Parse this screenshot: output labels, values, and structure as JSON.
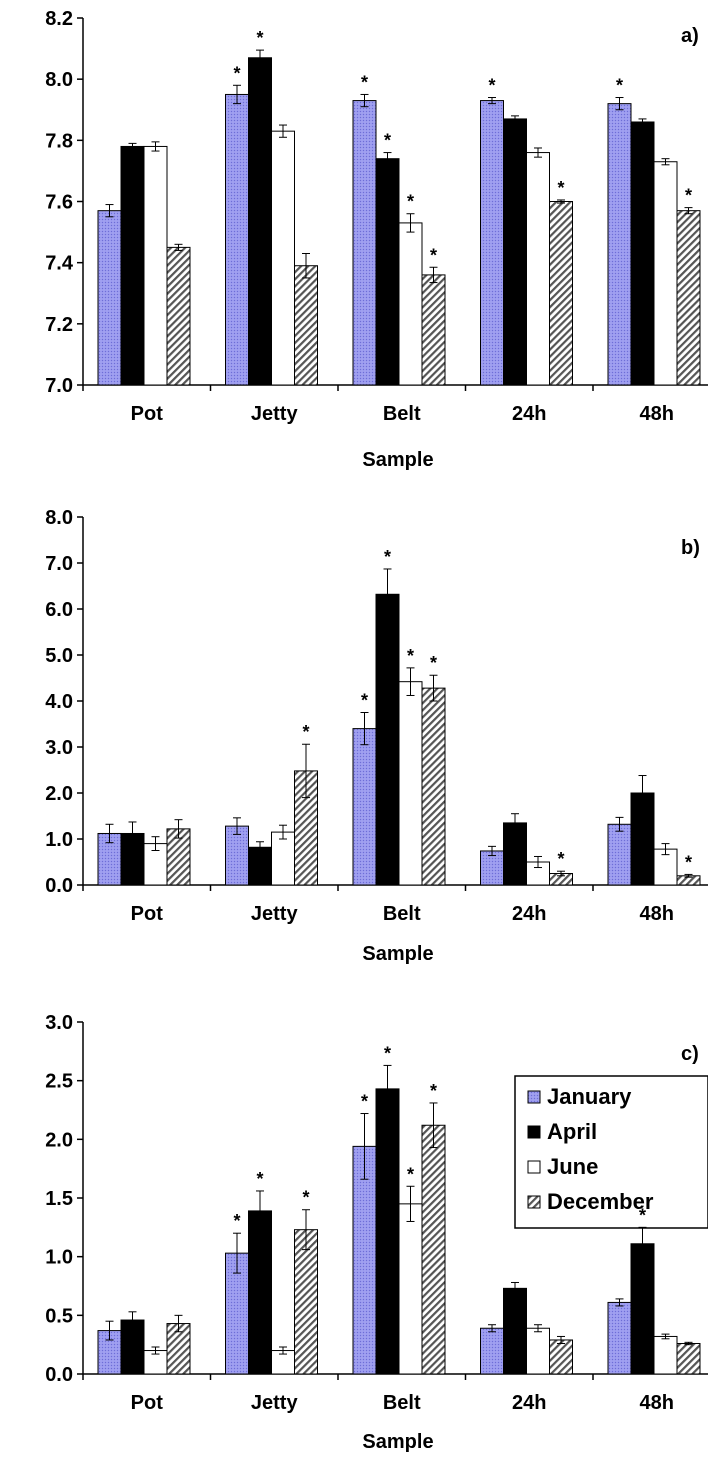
{
  "figure": {
    "legend": {
      "entries": [
        "January",
        "April",
        "June",
        "December"
      ]
    }
  },
  "series_styles": [
    {
      "name": "January",
      "fill": "#9999ee",
      "pattern": "dots"
    },
    {
      "name": "April",
      "fill": "#000000",
      "pattern": "solid"
    },
    {
      "name": "June",
      "fill": "#ffffff",
      "pattern": "solid"
    },
    {
      "name": "December",
      "fill": "#ffffff",
      "pattern": "diagonal-hatch"
    }
  ],
  "chart_data": [
    {
      "type": "bar",
      "panel_label": "a)",
      "title": "",
      "xlabel": "Sample",
      "ylabel": "",
      "categories": [
        "Pot",
        "Jetty",
        "Belt",
        "24h",
        "48h"
      ],
      "ylim": [
        7.0,
        8.2
      ],
      "yticks": [
        7.0,
        7.2,
        7.4,
        7.6,
        7.8,
        8.0,
        8.2
      ],
      "ytick_labels": [
        "7.0",
        "7.2",
        "7.4",
        "7.6",
        "7.8",
        "8.0",
        "8.2"
      ],
      "grid": false,
      "show_legend": false,
      "series": [
        {
          "name": "January",
          "values": [
            7.57,
            7.95,
            7.93,
            7.93,
            7.92
          ],
          "errors": [
            0.02,
            0.03,
            0.02,
            0.01,
            0.02
          ],
          "significant": [
            false,
            true,
            true,
            true,
            true
          ]
        },
        {
          "name": "April",
          "values": [
            7.78,
            8.07,
            7.74,
            7.87,
            7.86
          ],
          "errors": [
            0.01,
            0.025,
            0.02,
            0.01,
            0.01
          ],
          "significant": [
            false,
            true,
            true,
            false,
            false
          ]
        },
        {
          "name": "June",
          "values": [
            7.78,
            7.83,
            7.53,
            7.76,
            7.73
          ],
          "errors": [
            0.015,
            0.02,
            0.03,
            0.015,
            0.01
          ],
          "significant": [
            false,
            false,
            true,
            false,
            false
          ]
        },
        {
          "name": "December",
          "values": [
            7.45,
            7.39,
            7.36,
            7.6,
            7.57
          ],
          "errors": [
            0.01,
            0.04,
            0.025,
            0.005,
            0.01
          ],
          "significant": [
            false,
            false,
            true,
            true,
            true
          ]
        }
      ]
    },
    {
      "type": "bar",
      "panel_label": "b)",
      "title": "",
      "xlabel": "Sample",
      "ylabel": "",
      "categories": [
        "Pot",
        "Jetty",
        "Belt",
        "24h",
        "48h"
      ],
      "ylim": [
        0.0,
        8.0
      ],
      "yticks": [
        0,
        1,
        2,
        3,
        4,
        5,
        6,
        7,
        8
      ],
      "ytick_labels": [
        "0.0",
        "1.0",
        "2.0",
        "3.0",
        "4.0",
        "5.0",
        "6.0",
        "7.0",
        "8.0"
      ],
      "grid": false,
      "show_legend": false,
      "series": [
        {
          "name": "January",
          "values": [
            1.12,
            1.28,
            3.4,
            0.74,
            1.32
          ],
          "errors": [
            0.2,
            0.18,
            0.35,
            0.1,
            0.15
          ],
          "significant": [
            false,
            false,
            true,
            false,
            false
          ]
        },
        {
          "name": "April",
          "values": [
            1.12,
            0.82,
            6.32,
            1.35,
            2.0
          ],
          "errors": [
            0.25,
            0.12,
            0.55,
            0.2,
            0.38
          ],
          "significant": [
            false,
            false,
            true,
            false,
            false
          ]
        },
        {
          "name": "June",
          "values": [
            0.9,
            1.15,
            4.42,
            0.5,
            0.78
          ],
          "errors": [
            0.15,
            0.15,
            0.3,
            0.12,
            0.12
          ],
          "significant": [
            false,
            false,
            true,
            false,
            false
          ]
        },
        {
          "name": "December",
          "values": [
            1.22,
            2.48,
            4.28,
            0.25,
            0.2
          ],
          "errors": [
            0.2,
            0.58,
            0.28,
            0.05,
            0.03
          ],
          "significant": [
            false,
            true,
            true,
            true,
            true
          ]
        }
      ]
    },
    {
      "type": "bar",
      "panel_label": "c)",
      "title": "",
      "xlabel": "Sample",
      "ylabel": "",
      "categories": [
        "Pot",
        "Jetty",
        "Belt",
        "24h",
        "48h"
      ],
      "ylim": [
        0.0,
        3.0
      ],
      "yticks": [
        0,
        0.5,
        1.0,
        1.5,
        2.0,
        2.5,
        3.0
      ],
      "ytick_labels": [
        "0.0",
        "0.5",
        "1.0",
        "1.5",
        "2.0",
        "2.5",
        "3.0"
      ],
      "grid": false,
      "show_legend": true,
      "legend_position": "top-right",
      "series": [
        {
          "name": "January",
          "values": [
            0.37,
            1.03,
            1.94,
            0.39,
            0.61
          ],
          "errors": [
            0.08,
            0.17,
            0.28,
            0.03,
            0.03
          ],
          "significant": [
            false,
            true,
            true,
            false,
            false
          ]
        },
        {
          "name": "April",
          "values": [
            0.46,
            1.39,
            2.43,
            0.73,
            1.11
          ],
          "errors": [
            0.07,
            0.17,
            0.2,
            0.05,
            0.14
          ],
          "significant": [
            false,
            true,
            true,
            false,
            true
          ]
        },
        {
          "name": "June",
          "values": [
            0.2,
            0.2,
            1.45,
            0.39,
            0.32
          ],
          "errors": [
            0.03,
            0.03,
            0.15,
            0.03,
            0.02
          ],
          "significant": [
            false,
            false,
            true,
            false,
            false
          ]
        },
        {
          "name": "December",
          "values": [
            0.43,
            1.23,
            2.12,
            0.29,
            0.26
          ],
          "errors": [
            0.07,
            0.17,
            0.19,
            0.03,
            0.01
          ],
          "significant": [
            false,
            true,
            true,
            false,
            false
          ]
        }
      ]
    }
  ]
}
